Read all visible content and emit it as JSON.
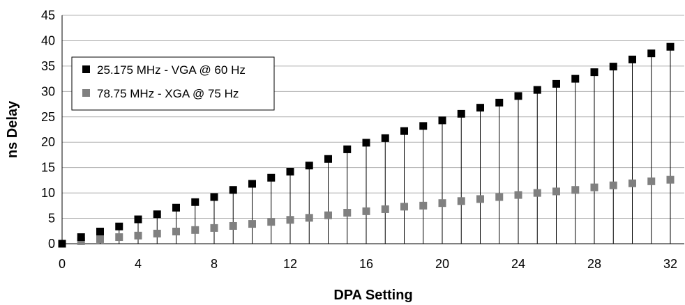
{
  "chart_data": {
    "type": "scatter",
    "xlabel": "DPA Setting",
    "ylabel": "ns Delay",
    "xlim": [
      0,
      32
    ],
    "ylim": [
      0,
      45
    ],
    "xticks": [
      "0",
      "4",
      "8",
      "12",
      "16",
      "20",
      "24",
      "28",
      "32"
    ],
    "yticks": [
      "0",
      "5",
      "10",
      "15",
      "20",
      "25",
      "30",
      "35",
      "40",
      "45"
    ],
    "grid": "horizontal",
    "legend_position": "upper-left",
    "x": [
      0,
      1,
      2,
      3,
      4,
      5,
      6,
      7,
      8,
      9,
      10,
      11,
      12,
      13,
      14,
      15,
      16,
      17,
      18,
      19,
      20,
      21,
      22,
      23,
      24,
      25,
      26,
      27,
      28,
      29,
      30,
      31,
      32
    ],
    "series": [
      {
        "name": "25.175 MHz - VGA @ 60 Hz",
        "color": "#000000",
        "values": [
          0,
          1.3,
          2.4,
          3.4,
          4.8,
          5.8,
          7.1,
          8.2,
          9.2,
          10.6,
          11.8,
          13.0,
          14.2,
          15.4,
          16.7,
          18.6,
          19.9,
          20.8,
          22.2,
          23.2,
          24.3,
          25.6,
          26.8,
          27.8,
          29.1,
          30.3,
          31.5,
          32.5,
          33.8,
          34.9,
          36.3,
          37.5,
          38.8
        ]
      },
      {
        "name": "78.75 MHz - XGA @ 75 Hz",
        "color": "#808080",
        "values": [
          0,
          0.5,
          0.9,
          1.3,
          1.6,
          2.0,
          2.4,
          2.7,
          3.1,
          3.5,
          3.9,
          4.3,
          4.7,
          5.1,
          5.6,
          6.1,
          6.4,
          6.8,
          7.3,
          7.5,
          8.0,
          8.4,
          8.8,
          9.2,
          9.6,
          10.0,
          10.3,
          10.6,
          11.1,
          11.5,
          11.9,
          12.3,
          12.6
        ]
      }
    ],
    "drop_lines": true
  }
}
